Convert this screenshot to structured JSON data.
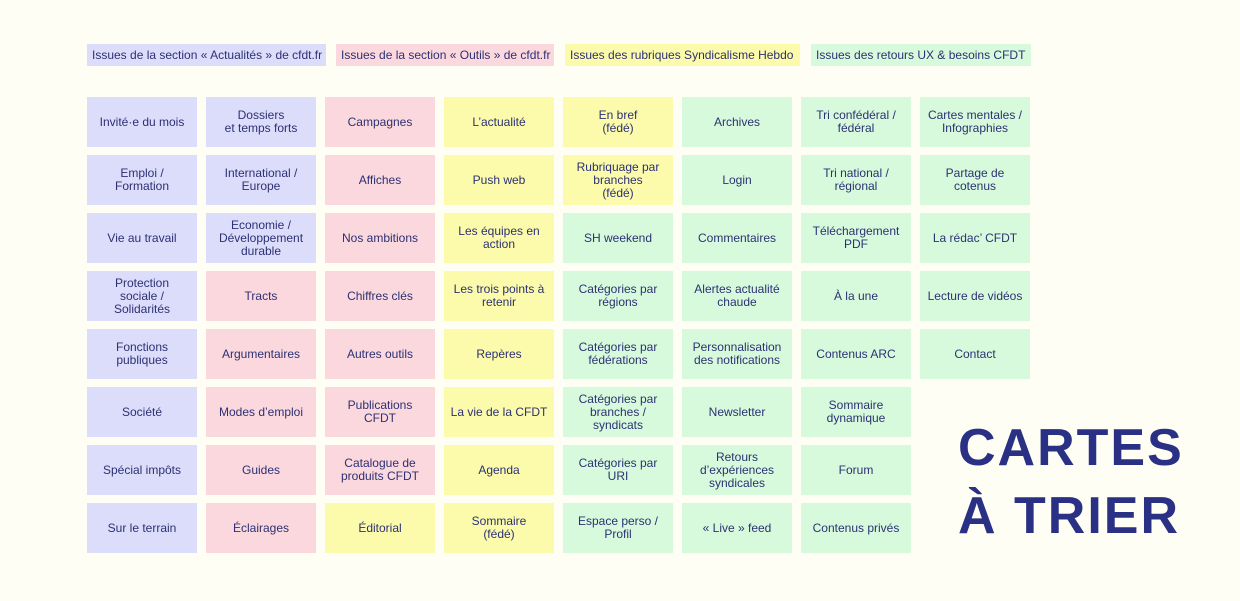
{
  "legend": [
    {
      "label": "Issues de la section « Actualités » de cfdt.fr",
      "category": "act",
      "color": "#dcdcfb"
    },
    {
      "label": "Issues de la section « Outils » de cfdt.fr",
      "category": "out",
      "color": "#fbd7de"
    },
    {
      "label": "Issues des rubriques Syndicalisme Hebdo",
      "category": "sh",
      "color": "#fcfbab"
    },
    {
      "label": "Issues des retours UX & besoins CFDT",
      "category": "ux",
      "color": "#d7fadc"
    }
  ],
  "columns": [
    [
      {
        "label": "Invité·e du mois",
        "category": "act"
      },
      {
        "label": "Emploi /\nFormation",
        "category": "act"
      },
      {
        "label": "Vie au travail",
        "category": "act"
      },
      {
        "label": "Protection\nsociale /\nSolidarités",
        "category": "act"
      },
      {
        "label": "Fonctions\npubliques",
        "category": "act"
      },
      {
        "label": "Société",
        "category": "act"
      },
      {
        "label": "Spécial impôts",
        "category": "act"
      },
      {
        "label": "Sur le terrain",
        "category": "act"
      }
    ],
    [
      {
        "label": "Dossiers\net temps forts",
        "category": "act"
      },
      {
        "label": "International /\nEurope",
        "category": "act"
      },
      {
        "label": "Economie /\nDéveloppement\ndurable",
        "category": "act"
      },
      {
        "label": "Tracts",
        "category": "out"
      },
      {
        "label": "Argumentaires",
        "category": "out"
      },
      {
        "label": "Modes d’emploi",
        "category": "out"
      },
      {
        "label": "Guides",
        "category": "out"
      },
      {
        "label": "Éclairages",
        "category": "out"
      }
    ],
    [
      {
        "label": "Campagnes",
        "category": "out"
      },
      {
        "label": "Affiches",
        "category": "out"
      },
      {
        "label": "Nos ambitions",
        "category": "out"
      },
      {
        "label": "Chiffres clés",
        "category": "out"
      },
      {
        "label": "Autres outils",
        "category": "out"
      },
      {
        "label": "Publications\nCFDT",
        "category": "out"
      },
      {
        "label": "Catalogue de\nproduits CFDT",
        "category": "out"
      },
      {
        "label": "Éditorial",
        "category": "sh"
      }
    ],
    [
      {
        "label": "L’actualité",
        "category": "sh"
      },
      {
        "label": "Push web",
        "category": "sh"
      },
      {
        "label": "Les équipes en\naction",
        "category": "sh"
      },
      {
        "label": "Les trois points à\nretenir",
        "category": "sh"
      },
      {
        "label": "Repères",
        "category": "sh"
      },
      {
        "label": "La vie de la CFDT",
        "category": "sh"
      },
      {
        "label": "Agenda",
        "category": "sh"
      },
      {
        "label": "Sommaire\n(fédé)",
        "category": "sh"
      }
    ],
    [
      {
        "label": "En bref\n(fédé)",
        "category": "sh"
      },
      {
        "label": "Rubriquage par\nbranches\n(fédé)",
        "category": "sh"
      },
      {
        "label": "SH weekend",
        "category": "ux"
      },
      {
        "label": "Catégories par\nrégions",
        "category": "ux"
      },
      {
        "label": "Catégories par\nfédérations",
        "category": "ux"
      },
      {
        "label": "Catégories par\nbranches /\nsyndicats",
        "category": "ux"
      },
      {
        "label": "Catégories par\nURI",
        "category": "ux"
      },
      {
        "label": "Espace perso /\nProfil",
        "category": "ux"
      }
    ],
    [
      {
        "label": "Archives",
        "category": "ux"
      },
      {
        "label": "Login",
        "category": "ux"
      },
      {
        "label": "Commentaires",
        "category": "ux"
      },
      {
        "label": "Alertes actualité\nchaude",
        "category": "ux"
      },
      {
        "label": "Personnalisation\ndes notifications",
        "category": "ux"
      },
      {
        "label": "Newsletter",
        "category": "ux"
      },
      {
        "label": "Retours\nd’expériences\nsyndicales",
        "category": "ux"
      },
      {
        "label": "« Live » feed",
        "category": "ux"
      }
    ],
    [
      {
        "label": "Tri confédéral /\nfédéral",
        "category": "ux"
      },
      {
        "label": "Tri national /\nrégional",
        "category": "ux"
      },
      {
        "label": "Téléchargement\nPDF",
        "category": "ux"
      },
      {
        "label": "À la une",
        "category": "ux"
      },
      {
        "label": "Contenus ARC",
        "category": "ux"
      },
      {
        "label": "Sommaire\ndynamique",
        "category": "ux"
      },
      {
        "label": "Forum",
        "category": "ux"
      },
      {
        "label": "Contenus privés",
        "category": "ux"
      }
    ],
    [
      {
        "label": "Cartes mentales /\nInfographies",
        "category": "ux"
      },
      {
        "label": "Partage de\ncotenus",
        "category": "ux"
      },
      {
        "label": "La rédac’ CFDT",
        "category": "ux"
      },
      {
        "label": "Lecture de vidéos",
        "category": "ux"
      },
      {
        "label": "Contact",
        "category": "ux"
      }
    ]
  ],
  "title": "CARTES\nÀ TRIER"
}
